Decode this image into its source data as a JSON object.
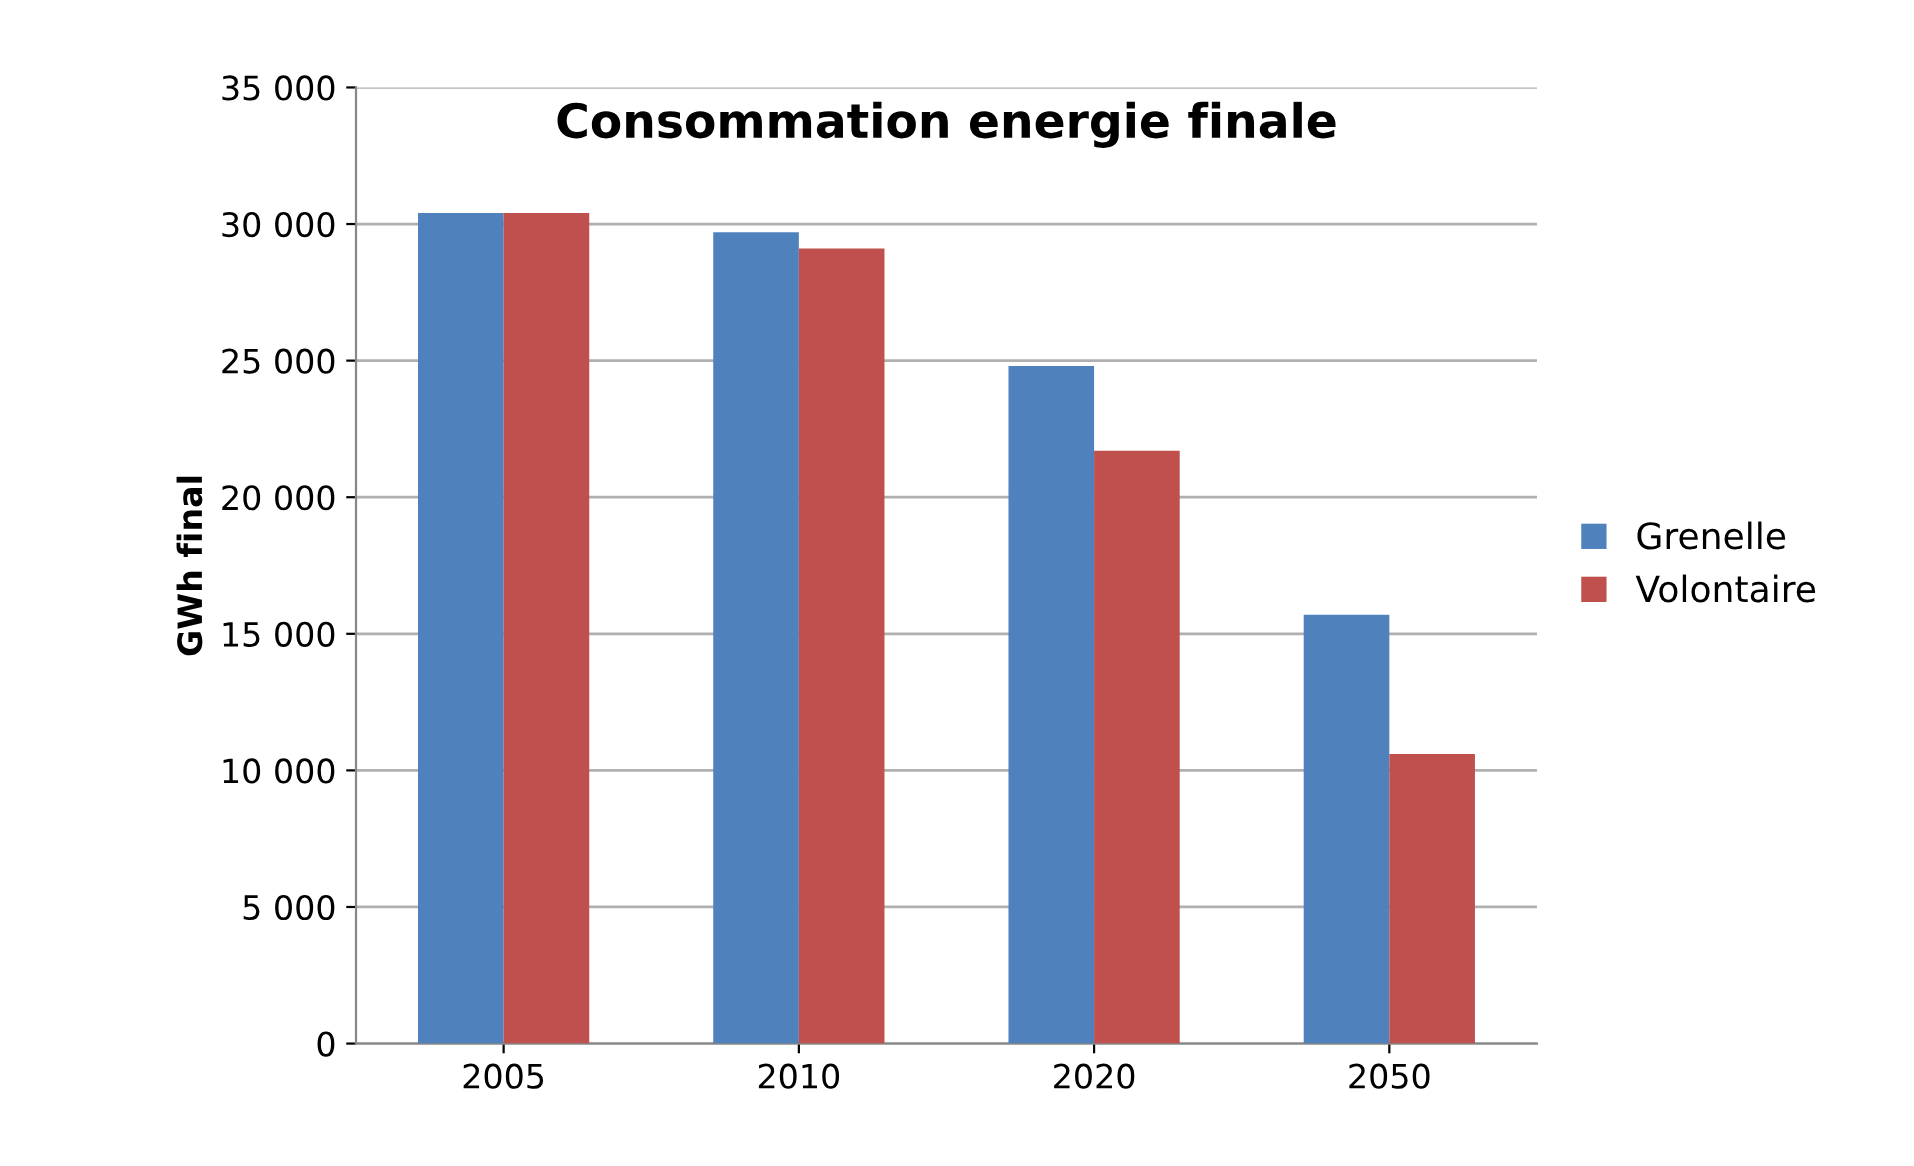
{
  "chart_data": {
    "type": "bar",
    "title": "Consommation energie finale",
    "ylabel": "GWh final",
    "categories": [
      "2005",
      "2010",
      "2020",
      "2050"
    ],
    "series": [
      {
        "name": "Grenelle",
        "color": "#4f81bd",
        "values": [
          30400,
          29700,
          24800,
          15700
        ]
      },
      {
        "name": "Volontaire",
        "color": "#c0504d",
        "values": [
          30400,
          29100,
          21700,
          10600
        ]
      }
    ],
    "ylim": [
      0,
      35000
    ],
    "yticks": [
      0,
      {
        "value": 5000,
        "label": "5 000"
      },
      {
        "value": 10000,
        "label": "10 000"
      },
      {
        "value": 15000,
        "label": "15 000"
      },
      {
        "value": 20000,
        "label": "20 000"
      },
      {
        "value": 25000,
        "label": "25 000"
      },
      {
        "value": 30000,
        "label": "30 000"
      },
      {
        "value": 35000,
        "label": "35 000"
      }
    ],
    "grid": "y",
    "legend": "right"
  }
}
